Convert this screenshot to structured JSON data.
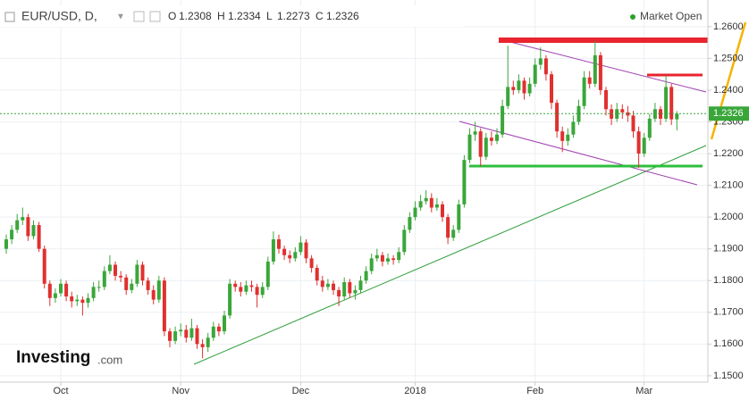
{
  "chart_data": {
    "type": "candlestick",
    "symbol": "EUR/USD, D,",
    "ohlc_labels": [
      "O",
      "H",
      "L",
      "C"
    ],
    "ohlc_values": [
      1.2308,
      1.2334,
      1.2273,
      1.2326
    ],
    "status": "Market Open",
    "brand": "Investing",
    "brand_suffix": ".com",
    "last_price": 1.2326,
    "up_color": "#3aa63a",
    "down_color": "#e0302f",
    "ylim": [
      1.148,
      1.2684
    ],
    "yticks": [
      {
        "value": 1.15,
        "label": "1.1500"
      },
      {
        "value": 1.16,
        "label": "1.1600"
      },
      {
        "value": 1.17,
        "label": "1.1700"
      },
      {
        "value": 1.18,
        "label": "1.1800"
      },
      {
        "value": 1.19,
        "label": "1.1900"
      },
      {
        "value": 1.2,
        "label": "1.2000"
      },
      {
        "value": 1.21,
        "label": "1.2100"
      },
      {
        "value": 1.22,
        "label": "1.2200"
      },
      {
        "value": 1.23,
        "label": "1.2300"
      },
      {
        "value": 1.24,
        "label": "1.2400"
      },
      {
        "value": 1.25,
        "label": "1.2500"
      },
      {
        "value": 1.26,
        "label": "1.2600"
      }
    ],
    "xticks": [
      {
        "value": 10,
        "label": "Oct"
      },
      {
        "value": 32,
        "label": "Nov"
      },
      {
        "value": 54,
        "label": "Dec"
      },
      {
        "value": 75,
        "label": "2018"
      },
      {
        "value": 97,
        "label": "Feb"
      },
      {
        "value": 117,
        "label": "Mar"
      }
    ],
    "grid": true,
    "open": [
      1.19,
      1.193,
      1.196,
      1.199,
      1.2,
      1.194,
      1.1975,
      1.19,
      1.179,
      1.1745,
      1.176,
      1.179,
      1.175,
      1.1735,
      1.174,
      1.173,
      1.1745,
      1.178,
      1.178,
      1.183,
      1.185,
      1.1815,
      1.181,
      1.177,
      1.179,
      1.185,
      1.18,
      1.177,
      1.174,
      1.18,
      1.164,
      1.161,
      1.164,
      1.1645,
      1.162,
      1.165,
      1.16,
      1.159,
      1.162,
      1.1655,
      1.164,
      1.169,
      1.179,
      1.178,
      1.1765,
      1.1785,
      1.178,
      1.1755,
      1.178,
      1.186,
      1.193,
      1.19,
      1.188,
      1.187,
      1.189,
      1.192,
      1.187,
      1.184,
      1.18,
      1.178,
      1.179,
      1.177,
      1.175,
      1.1795,
      1.176,
      1.177,
      1.18,
      1.183,
      1.187,
      1.188,
      1.186,
      1.187,
      1.1865,
      1.189,
      1.196,
      1.2,
      1.203,
      1.205,
      1.206,
      1.203,
      1.204,
      1.2,
      1.1935,
      1.196,
      1.204,
      1.218,
      1.226,
      1.227,
      1.219,
      1.225,
      1.224,
      1.226,
      1.235,
      1.241,
      1.24,
      1.243,
      1.239,
      1.242,
      1.248,
      1.25,
      1.245,
      1.236,
      1.227,
      1.224,
      1.226,
      1.23,
      1.235,
      1.244,
      1.242,
      1.251,
      1.24,
      1.234,
      1.231,
      1.234,
      1.233,
      1.232,
      1.227,
      1.22,
      1.225,
      1.231,
      1.234,
      1.231,
      1.241,
      1.2308
    ],
    "high": [
      1.1945,
      1.1975,
      1.201,
      1.203,
      1.201,
      1.199,
      1.1985,
      1.191,
      1.18,
      1.1775,
      1.1805,
      1.18,
      1.1765,
      1.1755,
      1.175,
      1.176,
      1.1795,
      1.18,
      1.1845,
      1.188,
      1.186,
      1.183,
      1.182,
      1.1805,
      1.1865,
      1.186,
      1.181,
      1.1785,
      1.1815,
      1.181,
      1.165,
      1.1655,
      1.1665,
      1.166,
      1.168,
      1.166,
      1.1615,
      1.1635,
      1.167,
      1.1665,
      1.1705,
      1.1805,
      1.18,
      1.1795,
      1.18,
      1.18,
      1.179,
      1.1795,
      1.1875,
      1.1955,
      1.1945,
      1.191,
      1.1895,
      1.1905,
      1.194,
      1.193,
      1.188,
      1.185,
      1.1815,
      1.1805,
      1.18,
      1.178,
      1.181,
      1.1805,
      1.1785,
      1.1815,
      1.1845,
      1.1885,
      1.19,
      1.189,
      1.1885,
      1.188,
      1.1905,
      1.1975,
      1.2015,
      1.205,
      1.207,
      1.2085,
      1.2075,
      1.206,
      1.205,
      1.201,
      1.1975,
      1.2055,
      1.2195,
      1.228,
      1.23,
      1.228,
      1.2265,
      1.227,
      1.228,
      1.237,
      1.254,
      1.243,
      1.245,
      1.244,
      1.244,
      1.25,
      1.2535,
      1.251,
      1.246,
      1.237,
      1.2285,
      1.228,
      1.232,
      1.237,
      1.246,
      1.246,
      1.2555,
      1.252,
      1.241,
      1.2355,
      1.236,
      1.2355,
      1.235,
      1.2335,
      1.2285,
      1.2265,
      1.2325,
      1.236,
      1.235,
      1.2445,
      1.242,
      1.2334
    ],
    "low": [
      1.1885,
      1.1915,
      1.195,
      1.1975,
      1.1925,
      1.193,
      1.189,
      1.1775,
      1.172,
      1.173,
      1.175,
      1.1735,
      1.1715,
      1.172,
      1.169,
      1.1715,
      1.1735,
      1.1765,
      1.177,
      1.182,
      1.18,
      1.1795,
      1.1755,
      1.176,
      1.178,
      1.1785,
      1.1755,
      1.1725,
      1.173,
      1.1625,
      1.159,
      1.16,
      1.1625,
      1.1605,
      1.161,
      1.1585,
      1.1555,
      1.1575,
      1.161,
      1.1625,
      1.163,
      1.168,
      1.1765,
      1.175,
      1.1755,
      1.1765,
      1.1715,
      1.1745,
      1.177,
      1.185,
      1.1885,
      1.1865,
      1.1855,
      1.186,
      1.188,
      1.1855,
      1.1825,
      1.1785,
      1.1765,
      1.177,
      1.1755,
      1.172,
      1.174,
      1.1745,
      1.174,
      1.176,
      1.179,
      1.182,
      1.186,
      1.1845,
      1.185,
      1.185,
      1.1855,
      1.188,
      1.195,
      1.199,
      1.202,
      1.204,
      1.2015,
      1.202,
      1.1985,
      1.1915,
      1.1925,
      1.195,
      1.203,
      1.217,
      1.224,
      1.216,
      1.218,
      1.2225,
      1.223,
      1.225,
      1.234,
      1.2385,
      1.239,
      1.237,
      1.238,
      1.241,
      1.2465,
      1.243,
      1.234,
      1.225,
      1.2205,
      1.2225,
      1.225,
      1.229,
      1.234,
      1.2405,
      1.241,
      1.2385,
      1.232,
      1.229,
      1.23,
      1.231,
      1.23,
      1.225,
      1.2155,
      1.219,
      1.224,
      1.23,
      1.229,
      1.23,
      1.229,
      1.2273
    ],
    "close": [
      1.193,
      1.196,
      1.199,
      1.2,
      1.194,
      1.1975,
      1.19,
      1.179,
      1.1745,
      1.176,
      1.179,
      1.175,
      1.1735,
      1.174,
      1.173,
      1.1745,
      1.178,
      1.178,
      1.183,
      1.185,
      1.1815,
      1.181,
      1.177,
      1.179,
      1.185,
      1.18,
      1.177,
      1.174,
      1.18,
      1.164,
      1.161,
      1.164,
      1.1645,
      1.162,
      1.165,
      1.16,
      1.159,
      1.162,
      1.1655,
      1.164,
      1.169,
      1.179,
      1.178,
      1.1765,
      1.1785,
      1.178,
      1.1755,
      1.178,
      1.186,
      1.193,
      1.19,
      1.188,
      1.187,
      1.189,
      1.192,
      1.187,
      1.184,
      1.18,
      1.178,
      1.179,
      1.177,
      1.175,
      1.1795,
      1.176,
      1.177,
      1.18,
      1.183,
      1.187,
      1.188,
      1.186,
      1.187,
      1.1865,
      1.189,
      1.196,
      1.2,
      1.203,
      1.205,
      1.206,
      1.203,
      1.204,
      1.2,
      1.1935,
      1.196,
      1.204,
      1.218,
      1.226,
      1.227,
      1.219,
      1.225,
      1.224,
      1.226,
      1.235,
      1.241,
      1.24,
      1.243,
      1.239,
      1.242,
      1.248,
      1.25,
      1.245,
      1.236,
      1.227,
      1.224,
      1.226,
      1.23,
      1.235,
      1.244,
      1.242,
      1.251,
      1.24,
      1.234,
      1.231,
      1.234,
      1.233,
      1.232,
      1.227,
      1.22,
      1.225,
      1.231,
      1.234,
      1.231,
      1.241,
      1.2308,
      1.2326
    ]
  }
}
